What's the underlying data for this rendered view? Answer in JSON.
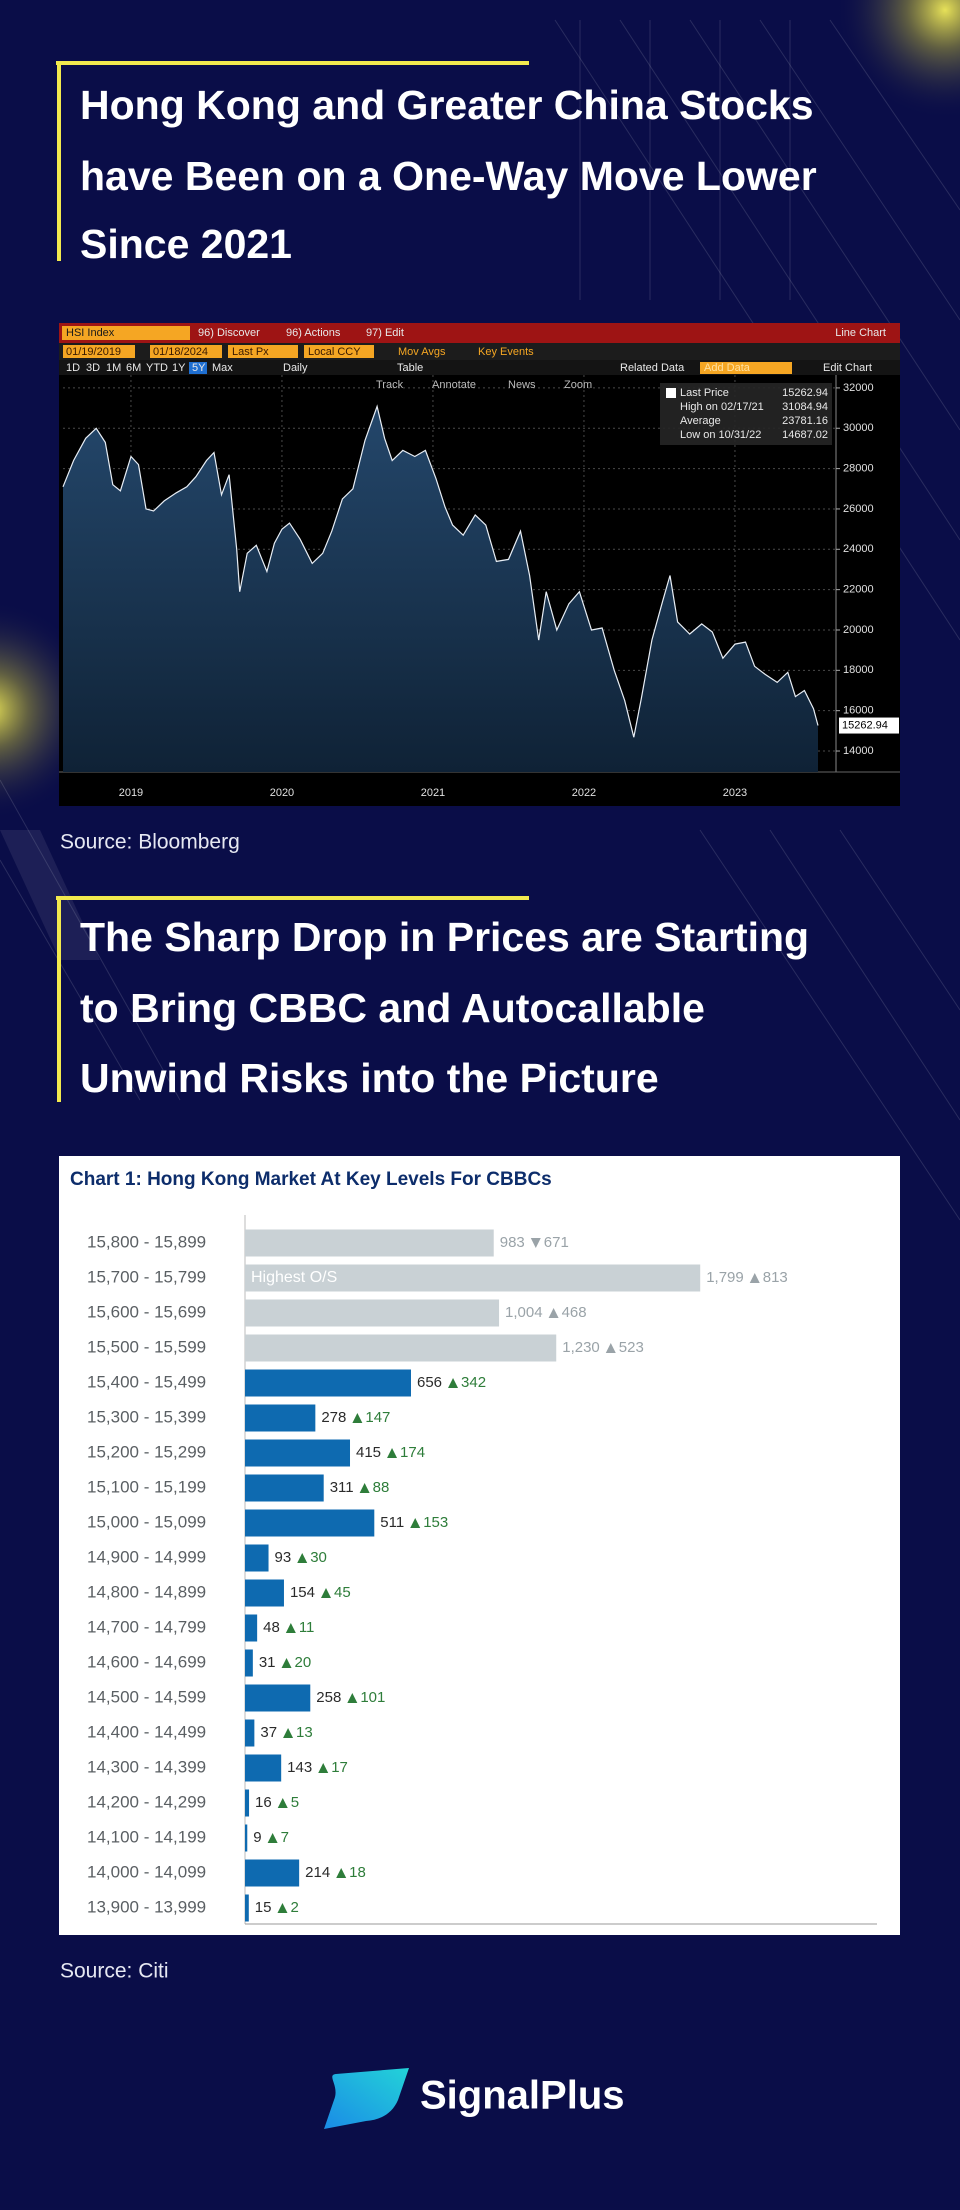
{
  "headings": [
    {
      "lines": [
        "Hong Kong and Greater China Stocks",
        "have Been on a One-Way Move Lower",
        "Since 2021"
      ]
    },
    {
      "lines": [
        "The Sharp Drop in Prices are Starting",
        "to Bring CBBC and Autocallable",
        "Unwind Risks into the Picture"
      ]
    }
  ],
  "sources": [
    "Source: Bloomberg",
    "Source: Citi"
  ],
  "logo": "SignalPlus",
  "chart_data": [
    {
      "type": "line",
      "toolbar": {
        "ticker": "HSI Index",
        "discover": "96) Discover",
        "actions": "96) Actions",
        "edit": "97) Edit",
        "chart_type": "Line Chart",
        "start_date": "01/19/2019",
        "end_date": "01/18/2024",
        "field": "Last Px",
        "currency": "Local CCY",
        "mov_avgs": "Mov Avgs",
        "key_events": "Key Events",
        "periods": [
          "1D",
          "3D",
          "1M",
          "6M",
          "YTD",
          "1Y",
          "5Y",
          "Max"
        ],
        "frequency": "Daily",
        "table": "Table",
        "related_data": "Related Data",
        "add_data": "Add Data",
        "edit_chart": "Edit Chart",
        "tools": [
          "Track",
          "Annotate",
          "News",
          "Zoom"
        ]
      },
      "legend": [
        {
          "label": "Last Price",
          "value": 15262.94
        },
        {
          "label": "High on 02/17/21",
          "value": 31084.94
        },
        {
          "label": "Average",
          "value": 23781.16
        },
        {
          "label": "Low on 10/31/22",
          "value": 14687.02
        }
      ],
      "legend_position": "top-right",
      "x": [
        2019.05,
        2019.12,
        2019.2,
        2019.27,
        2019.33,
        2019.38,
        2019.43,
        2019.5,
        2019.55,
        2019.6,
        2019.65,
        2019.72,
        2019.8,
        2019.87,
        2019.93,
        2020.0,
        2020.05,
        2020.1,
        2020.15,
        2020.2,
        2020.22,
        2020.27,
        2020.33,
        2020.4,
        2020.45,
        2020.5,
        2020.55,
        2020.62,
        2020.7,
        2020.77,
        2020.83,
        2020.9,
        2020.97,
        2021.05,
        2021.13,
        2021.18,
        2021.23,
        2021.3,
        2021.38,
        2021.45,
        2021.52,
        2021.58,
        2021.63,
        2021.7,
        2021.78,
        2021.85,
        2021.92,
        2022.0,
        2022.08,
        2022.14,
        2022.2,
        2022.25,
        2022.32,
        2022.4,
        2022.47,
        2022.55,
        2022.62,
        2022.7,
        2022.77,
        2022.83,
        2022.88,
        2022.95,
        2023.02,
        2023.07,
        2023.12,
        2023.2,
        2023.28,
        2023.35,
        2023.42,
        2023.5,
        2023.57,
        2023.63,
        2023.7,
        2023.78,
        2023.85,
        2023.9,
        2023.96,
        2024.02,
        2024.05
      ],
      "values": [
        27100,
        28400,
        29500,
        30000,
        29300,
        27200,
        26900,
        28600,
        28200,
        26000,
        25900,
        26400,
        26800,
        27100,
        27600,
        28400,
        28800,
        26700,
        27700,
        24000,
        21900,
        23800,
        24200,
        22900,
        24300,
        25000,
        25300,
        24500,
        23300,
        23800,
        24900,
        26500,
        27000,
        29400,
        31084.94,
        29500,
        28400,
        28900,
        28600,
        28900,
        27500,
        26100,
        25200,
        24700,
        25700,
        25200,
        23400,
        23500,
        24900,
        22700,
        19500,
        21900,
        20000,
        21300,
        21900,
        20000,
        20100,
        18000,
        16500,
        14687.02,
        16600,
        19500,
        21400,
        22700,
        20400,
        19800,
        20300,
        19900,
        18600,
        19300,
        19400,
        18200,
        17800,
        17400,
        17900,
        16700,
        17000,
        16100,
        15262.94
      ],
      "color": "#e8eef5",
      "xlim": [
        2019.05,
        2024.05
      ],
      "xticks": [
        {
          "value": 2019.5,
          "label": "2019"
        },
        {
          "value": 2020.5,
          "label": "2020"
        },
        {
          "value": 2021.5,
          "label": "2021"
        },
        {
          "value": 2022.5,
          "label": "2022"
        },
        {
          "value": 2023.5,
          "label": "2023"
        }
      ],
      "ylim": [
        12960,
        32640
      ],
      "yticks": [
        14000,
        16000,
        18000,
        20000,
        22000,
        24000,
        26000,
        28000,
        30000,
        32000
      ],
      "grid": true
    },
    {
      "type": "bar",
      "orientation": "horizontal",
      "title": "Chart 1: Hong Kong Market At Key Levels For CBBCs",
      "categories": [
        "15,800 - 15,899",
        "15,700 - 15,799",
        "15,600 - 15,699",
        "15,500 - 15,599",
        "15,400 - 15,499",
        "15,300 - 15,399",
        "15,200 - 15,299",
        "15,100 - 15,199",
        "15,000 - 15,099",
        "14,900 - 14,999",
        "14,800 - 14,899",
        "14,700 - 14,799",
        "14,600 - 14,699",
        "14,500 - 14,599",
        "14,400 - 14,499",
        "14,300 - 14,399",
        "14,200 - 14,299",
        "14,100 - 14,199",
        "14,000 - 14,099",
        "13,900 - 13,999"
      ],
      "values": [
        983,
        1799,
        1004,
        1230,
        656,
        278,
        415,
        311,
        511,
        93,
        154,
        48,
        31,
        258,
        37,
        143,
        16,
        9,
        214,
        15
      ],
      "value_labels": [
        "983",
        "1,799",
        "1,004",
        "1,230",
        "656",
        "278",
        "415",
        "311",
        "511",
        "93",
        "154",
        "48",
        "31",
        "258",
        "37",
        "143",
        "16",
        "9",
        "214",
        "15"
      ],
      "changes": [
        -671,
        813,
        468,
        523,
        342,
        147,
        174,
        88,
        153,
        30,
        45,
        11,
        20,
        101,
        13,
        17,
        5,
        7,
        18,
        2
      ],
      "change_labels": [
        "671",
        "813",
        "468",
        "523",
        "342",
        "147",
        "174",
        "88",
        "153",
        "30",
        "45",
        "11",
        "20",
        "101",
        "13",
        "17",
        "5",
        "7",
        "18",
        "2"
      ],
      "colors": [
        "#c9d1d5",
        "#c9d1d5",
        "#c9d1d5",
        "#c9d1d5",
        "#0e6ab0",
        "#0e6ab0",
        "#0e6ab0",
        "#0e6ab0",
        "#0e6ab0",
        "#0e6ab0",
        "#0e6ab0",
        "#0e6ab0",
        "#0e6ab0",
        "#0e6ab0",
        "#0e6ab0",
        "#0e6ab0",
        "#0e6ab0",
        "#0e6ab0",
        "#0e6ab0",
        "#0e6ab0"
      ],
      "bar_annotations": [
        null,
        "Highest O/S",
        null,
        null,
        null,
        null,
        null,
        null,
        null,
        null,
        null,
        null,
        null,
        null,
        null,
        null,
        null,
        null,
        null,
        null
      ],
      "xlim": [
        0,
        2470
      ]
    }
  ]
}
